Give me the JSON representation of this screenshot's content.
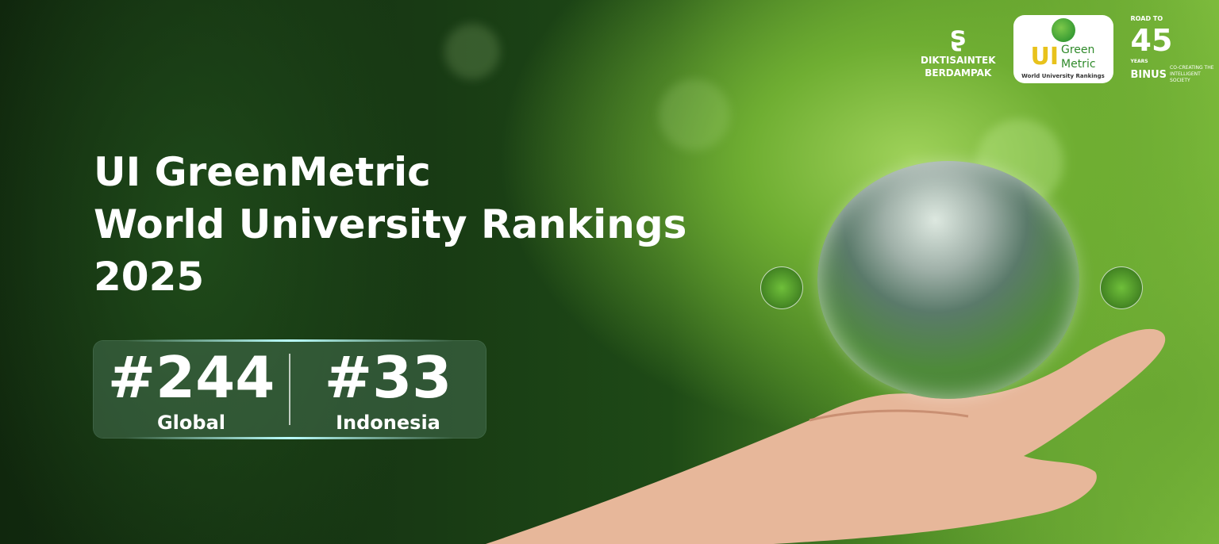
{
  "banner": {
    "title_lines": [
      "UI GreenMetric",
      "World University Rankings",
      "2025"
    ],
    "rankings": [
      {
        "value": "#244",
        "label": "Global"
      },
      {
        "value": "#33",
        "label": "Indonesia"
      }
    ],
    "logos": {
      "dikti": {
        "line1": "DIKTISAINTEK",
        "line2": "BERDAMPAK"
      },
      "greenmetric": {
        "ui": "UI",
        "green": "Green",
        "metric": "Metric",
        "subtitle": "World University Rankings"
      },
      "binus": {
        "road": "ROAD TO",
        "number": "45",
        "years": "YEARS",
        "name": "BINUS",
        "tagline": "CO-CREATING THE INTELLIGENT SOCIETY"
      }
    },
    "colors": {
      "accent_green": "#7fbd3e",
      "dark_green": "#10270d",
      "gm_yellow": "#e8c21c",
      "gm_green": "#2f8a2a"
    }
  }
}
